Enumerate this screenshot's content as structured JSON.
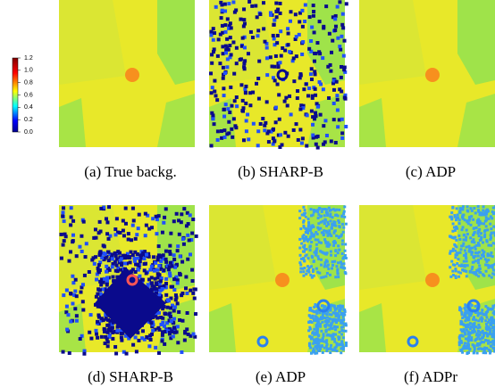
{
  "colorbar": {
    "range": [
      0,
      1.2
    ],
    "ticks": [
      {
        "value": 0,
        "label": "0.0"
      },
      0.2,
      0.4,
      0.6,
      0.8,
      {
        "value": 1,
        "label": "1.0"
      },
      1.2
    ]
  },
  "panels": [
    {
      "caption": "(a) True backg."
    },
    {
      "caption": "(b) SHARP-B"
    },
    {
      "caption": "(c) ADP"
    },
    {
      "caption": "(d) SHARP-B"
    },
    {
      "caption": "(e) ADP"
    },
    {
      "caption": "(f) ADPr"
    }
  ]
}
